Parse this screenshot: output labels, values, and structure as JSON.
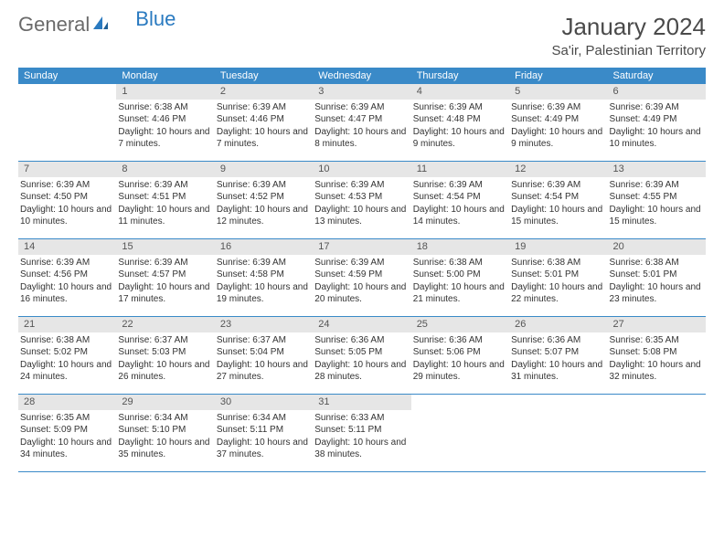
{
  "brand": {
    "word1": "General",
    "word2": "Blue"
  },
  "title": "January 2024",
  "location": "Sa'ir, Palestinian Territory",
  "colors": {
    "header_bg": "#3a8ac8",
    "header_text": "#ffffff",
    "daynum_bg": "#e6e6e6",
    "rule": "#3a8ac8",
    "body_text": "#333333",
    "title_text": "#4a4a4a"
  },
  "fonts": {
    "title_size": 26,
    "location_size": 15,
    "dow_size": 11,
    "daynum_size": 11,
    "body_size": 10
  },
  "days_of_week": [
    "Sunday",
    "Monday",
    "Tuesday",
    "Wednesday",
    "Thursday",
    "Friday",
    "Saturday"
  ],
  "weeks": [
    [
      null,
      {
        "n": "1",
        "sunrise": "6:38 AM",
        "sunset": "4:46 PM",
        "daylight": "10 hours and 7 minutes."
      },
      {
        "n": "2",
        "sunrise": "6:39 AM",
        "sunset": "4:46 PM",
        "daylight": "10 hours and 7 minutes."
      },
      {
        "n": "3",
        "sunrise": "6:39 AM",
        "sunset": "4:47 PM",
        "daylight": "10 hours and 8 minutes."
      },
      {
        "n": "4",
        "sunrise": "6:39 AM",
        "sunset": "4:48 PM",
        "daylight": "10 hours and 9 minutes."
      },
      {
        "n": "5",
        "sunrise": "6:39 AM",
        "sunset": "4:49 PM",
        "daylight": "10 hours and 9 minutes."
      },
      {
        "n": "6",
        "sunrise": "6:39 AM",
        "sunset": "4:49 PM",
        "daylight": "10 hours and 10 minutes."
      }
    ],
    [
      {
        "n": "7",
        "sunrise": "6:39 AM",
        "sunset": "4:50 PM",
        "daylight": "10 hours and 10 minutes."
      },
      {
        "n": "8",
        "sunrise": "6:39 AM",
        "sunset": "4:51 PM",
        "daylight": "10 hours and 11 minutes."
      },
      {
        "n": "9",
        "sunrise": "6:39 AM",
        "sunset": "4:52 PM",
        "daylight": "10 hours and 12 minutes."
      },
      {
        "n": "10",
        "sunrise": "6:39 AM",
        "sunset": "4:53 PM",
        "daylight": "10 hours and 13 minutes."
      },
      {
        "n": "11",
        "sunrise": "6:39 AM",
        "sunset": "4:54 PM",
        "daylight": "10 hours and 14 minutes."
      },
      {
        "n": "12",
        "sunrise": "6:39 AM",
        "sunset": "4:54 PM",
        "daylight": "10 hours and 15 minutes."
      },
      {
        "n": "13",
        "sunrise": "6:39 AM",
        "sunset": "4:55 PM",
        "daylight": "10 hours and 15 minutes."
      }
    ],
    [
      {
        "n": "14",
        "sunrise": "6:39 AM",
        "sunset": "4:56 PM",
        "daylight": "10 hours and 16 minutes."
      },
      {
        "n": "15",
        "sunrise": "6:39 AM",
        "sunset": "4:57 PM",
        "daylight": "10 hours and 17 minutes."
      },
      {
        "n": "16",
        "sunrise": "6:39 AM",
        "sunset": "4:58 PM",
        "daylight": "10 hours and 19 minutes."
      },
      {
        "n": "17",
        "sunrise": "6:39 AM",
        "sunset": "4:59 PM",
        "daylight": "10 hours and 20 minutes."
      },
      {
        "n": "18",
        "sunrise": "6:38 AM",
        "sunset": "5:00 PM",
        "daylight": "10 hours and 21 minutes."
      },
      {
        "n": "19",
        "sunrise": "6:38 AM",
        "sunset": "5:01 PM",
        "daylight": "10 hours and 22 minutes."
      },
      {
        "n": "20",
        "sunrise": "6:38 AM",
        "sunset": "5:01 PM",
        "daylight": "10 hours and 23 minutes."
      }
    ],
    [
      {
        "n": "21",
        "sunrise": "6:38 AM",
        "sunset": "5:02 PM",
        "daylight": "10 hours and 24 minutes."
      },
      {
        "n": "22",
        "sunrise": "6:37 AM",
        "sunset": "5:03 PM",
        "daylight": "10 hours and 26 minutes."
      },
      {
        "n": "23",
        "sunrise": "6:37 AM",
        "sunset": "5:04 PM",
        "daylight": "10 hours and 27 minutes."
      },
      {
        "n": "24",
        "sunrise": "6:36 AM",
        "sunset": "5:05 PM",
        "daylight": "10 hours and 28 minutes."
      },
      {
        "n": "25",
        "sunrise": "6:36 AM",
        "sunset": "5:06 PM",
        "daylight": "10 hours and 29 minutes."
      },
      {
        "n": "26",
        "sunrise": "6:36 AM",
        "sunset": "5:07 PM",
        "daylight": "10 hours and 31 minutes."
      },
      {
        "n": "27",
        "sunrise": "6:35 AM",
        "sunset": "5:08 PM",
        "daylight": "10 hours and 32 minutes."
      }
    ],
    [
      {
        "n": "28",
        "sunrise": "6:35 AM",
        "sunset": "5:09 PM",
        "daylight": "10 hours and 34 minutes."
      },
      {
        "n": "29",
        "sunrise": "6:34 AM",
        "sunset": "5:10 PM",
        "daylight": "10 hours and 35 minutes."
      },
      {
        "n": "30",
        "sunrise": "6:34 AM",
        "sunset": "5:11 PM",
        "daylight": "10 hours and 37 minutes."
      },
      {
        "n": "31",
        "sunrise": "6:33 AM",
        "sunset": "5:11 PM",
        "daylight": "10 hours and 38 minutes."
      },
      null,
      null,
      null
    ]
  ],
  "labels": {
    "sunrise": "Sunrise:",
    "sunset": "Sunset:",
    "daylight": "Daylight:"
  }
}
